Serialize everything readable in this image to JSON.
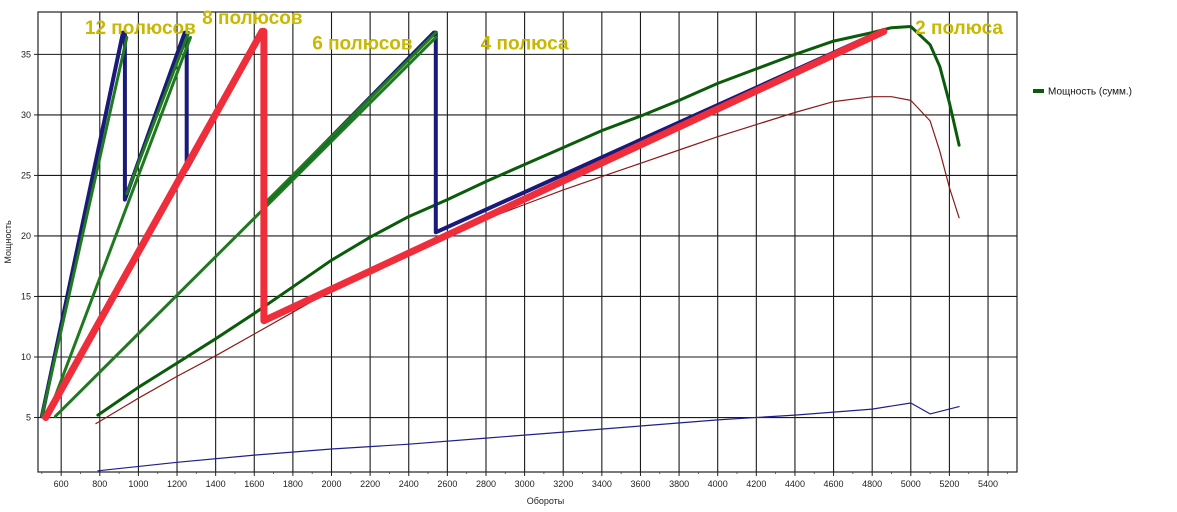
{
  "chart_data": {
    "type": "line",
    "xlabel": "Обороты",
    "ylabel": "Мощность",
    "xlim": [
      480,
      5550
    ],
    "ylim": [
      0.5,
      38.5
    ],
    "xticks": [
      600,
      800,
      1000,
      1200,
      1400,
      1600,
      1800,
      2000,
      2200,
      2400,
      2600,
      2800,
      3000,
      3200,
      3400,
      3600,
      3800,
      4000,
      4200,
      4400,
      4600,
      4800,
      5000,
      5200,
      5400
    ],
    "yticks": [
      5,
      10,
      15,
      20,
      25,
      30,
      35
    ],
    "grid": true,
    "legend": {
      "position": "right",
      "entries": [
        {
          "label": "Мощность (сумм.)",
          "color": "#0a5c0a"
        }
      ]
    },
    "annotations": [
      {
        "text": "12 полюсов",
        "x": 1010,
        "y": 36.7
      },
      {
        "text": "8 полюсов",
        "x": 1590,
        "y": 37.5
      },
      {
        "text": "6 полюсов",
        "x": 2160,
        "y": 35.4
      },
      {
        "text": "4 полюса",
        "x": 3000,
        "y": 35.4
      },
      {
        "text": "2 полюса",
        "x": 5250,
        "y": 36.7
      }
    ],
    "series": [
      {
        "name": "Мощность (сумм.)",
        "color": "#0a5c0a",
        "width": 3,
        "x": [
          790,
          1000,
          1200,
          1400,
          1600,
          1800,
          2000,
          2200,
          2400,
          2600,
          2800,
          3000,
          3200,
          3400,
          3600,
          3800,
          4000,
          4200,
          4400,
          4600,
          4800,
          4900,
          5000,
          5100,
          5150,
          5200,
          5250
        ],
        "y": [
          5.2,
          7.5,
          9.5,
          11.5,
          13.6,
          15.8,
          18.0,
          19.9,
          21.6,
          23.0,
          24.5,
          25.9,
          27.3,
          28.7,
          29.9,
          31.2,
          32.6,
          33.8,
          35.0,
          36.1,
          36.8,
          37.2,
          37.3,
          35.8,
          34.0,
          31.0,
          27.5
        ]
      },
      {
        "color": "#8b1a1a",
        "width": 1.2,
        "x": [
          780,
          1000,
          1200,
          1400,
          1600,
          1800,
          2000,
          2200,
          2400,
          2600,
          2800,
          3000,
          3200,
          3400,
          3600,
          3800,
          4000,
          4200,
          4400,
          4600,
          4800,
          4900,
          5000,
          5100,
          5150,
          5200,
          5250
        ],
        "y": [
          4.5,
          6.6,
          8.4,
          10.1,
          11.9,
          13.7,
          15.5,
          17.2,
          18.7,
          20.1,
          21.4,
          22.6,
          23.8,
          24.9,
          26.0,
          27.1,
          28.2,
          29.2,
          30.2,
          31.1,
          31.5,
          31.5,
          31.2,
          29.5,
          27.0,
          24.0,
          21.5
        ]
      },
      {
        "color": "#1f1f8c",
        "width": 1.2,
        "x": [
          790,
          1200,
          1600,
          2000,
          2400,
          2800,
          3200,
          3600,
          4000,
          4400,
          4800,
          5000,
          5100,
          5250
        ],
        "y": [
          0.6,
          1.3,
          1.9,
          2.4,
          2.8,
          3.3,
          3.8,
          4.3,
          4.8,
          5.2,
          5.7,
          6.2,
          5.3,
          5.9
        ]
      },
      {
        "color": "#1a1a7a",
        "width": 4,
        "x": [
          500,
          920,
          930,
          930,
          1240,
          1250,
          1250,
          1640,
          1650,
          1650,
          2530,
          2540,
          2540,
          4830
        ],
        "y": [
          5.1,
          36.8,
          36.8,
          23.0,
          36.8,
          36.8,
          25.5,
          36.8,
          36.8,
          22.5,
          36.8,
          36.8,
          20.3,
          36.8
        ]
      },
      {
        "color": "#1f7a1f",
        "width": 3,
        "x": [
          500,
          940
        ],
        "y": [
          5.1,
          36.4
        ]
      },
      {
        "color": "#1f7a1f",
        "width": 3,
        "x": [
          530,
          1270
        ],
        "y": [
          5.1,
          36.4
        ]
      },
      {
        "color": "#1f7a1f",
        "width": 3,
        "x": [
          570,
          2540
        ],
        "y": [
          5.1,
          36.4
        ]
      },
      {
        "color": "#1f7a1f",
        "width": 3,
        "x": [
          940,
          1260
        ],
        "y": [
          23.5,
          36.8
        ]
      },
      {
        "color": "#1f7a1f",
        "width": 3,
        "x": [
          1660,
          2540
        ],
        "y": [
          22.8,
          36.8
        ]
      },
      {
        "color": "#f02d3a",
        "width": 7,
        "x": [
          520,
          1640,
          1650,
          1650,
          4860
        ],
        "y": [
          5.0,
          36.9,
          36.9,
          13.0,
          36.9
        ]
      }
    ]
  }
}
